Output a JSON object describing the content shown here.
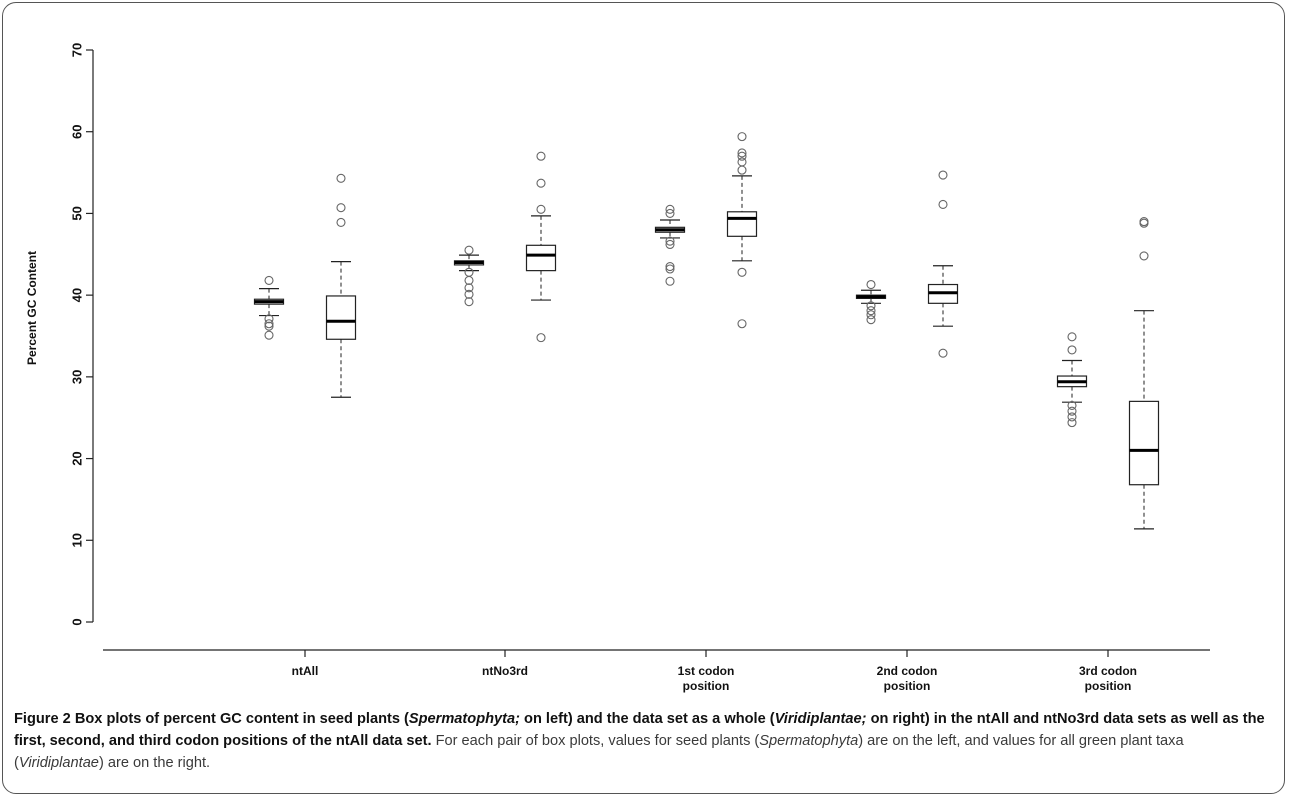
{
  "figure": {
    "caption": {
      "label": "Figure 2",
      "t1": " Box plots of percent GC content in seed plants (",
      "t1_i": "Spermatophyta;",
      "t2": " on left) and the data set as a whole (",
      "t2_i": "Viridiplantae;",
      "t3": " on right) in the ntAll and ntNo3rd data sets as well as the first, second, and third codon positions of the ntAll data set.",
      "t4": " For each pair of box plots, values for seed plants (",
      "t4_i": "Spermatophyta",
      "t5": ") are on the left, and values for all green plant taxa (",
      "t5_i": "Viridiplantae",
      "t6": ") are on the right."
    }
  },
  "chart_data": {
    "type": "boxplot",
    "ylabel": "Percent GC Content",
    "ylim": [
      0,
      70
    ],
    "yticks": [
      0,
      10,
      20,
      30,
      40,
      50,
      60,
      70
    ],
    "grid": false,
    "groups": [
      {
        "category": [
          "ntAll"
        ],
        "boxes": [
          {
            "series": "Spermatophyta",
            "min": 37.5,
            "q1": 38.9,
            "median": 39.2,
            "q3": 39.5,
            "max": 40.8,
            "outliers": [
              41.8,
              37.1,
              36.5,
              36.2,
              35.1
            ]
          },
          {
            "series": "Viridiplantae",
            "min": 27.5,
            "q1": 34.6,
            "median": 36.8,
            "q3": 39.9,
            "max": 44.1,
            "outliers": [
              48.9,
              50.7,
              54.3
            ]
          }
        ]
      },
      {
        "category": [
          "ntNo3rd"
        ],
        "boxes": [
          {
            "series": "Spermatophyta",
            "min": 43.0,
            "q1": 43.7,
            "median": 44.0,
            "q3": 44.2,
            "max": 44.9,
            "outliers": [
              45.5,
              42.8,
              41.8,
              40.9,
              40.1,
              39.2
            ]
          },
          {
            "series": "Viridiplantae",
            "min": 39.4,
            "q1": 43.0,
            "median": 44.9,
            "q3": 46.1,
            "max": 49.7,
            "outliers": [
              50.5,
              53.7,
              57.0,
              34.8
            ]
          }
        ]
      },
      {
        "category": [
          "1st codon",
          "position"
        ],
        "boxes": [
          {
            "series": "Spermatophyta",
            "min": 47.0,
            "q1": 47.7,
            "median": 48.0,
            "q3": 48.3,
            "max": 49.2,
            "outliers": [
              50.0,
              50.5,
              46.6,
              46.2,
              43.5,
              43.2,
              41.7
            ]
          },
          {
            "series": "Viridiplantae",
            "min": 44.2,
            "q1": 47.2,
            "median": 49.4,
            "q3": 50.2,
            "max": 54.6,
            "outliers": [
              55.3,
              56.3,
              57.0,
              57.4,
              59.4,
              42.8,
              36.5
            ]
          }
        ]
      },
      {
        "category": [
          "2nd codon",
          "position"
        ],
        "boxes": [
          {
            "series": "Spermatophyta",
            "min": 39.0,
            "q1": 39.6,
            "median": 39.8,
            "q3": 40.0,
            "max": 40.6,
            "outliers": [
              41.3,
              38.7,
              38.1,
              37.6,
              37.0
            ]
          },
          {
            "series": "Viridiplantae",
            "min": 36.2,
            "q1": 39.0,
            "median": 40.3,
            "q3": 41.3,
            "max": 43.6,
            "outliers": [
              51.1,
              54.7,
              32.9
            ]
          }
        ]
      },
      {
        "category": [
          "3rd codon",
          "position"
        ],
        "boxes": [
          {
            "series": "Spermatophyta",
            "min": 26.9,
            "q1": 28.8,
            "median": 29.4,
            "q3": 30.1,
            "max": 32.0,
            "outliers": [
              33.3,
              34.9,
              26.5,
              25.8,
              25.1,
              24.4
            ]
          },
          {
            "series": "Viridiplantae",
            "min": 11.4,
            "q1": 16.8,
            "median": 21.0,
            "q3": 27.0,
            "max": 38.1,
            "outliers": [
              44.8,
              48.8,
              49.0
            ]
          }
        ]
      }
    ]
  }
}
